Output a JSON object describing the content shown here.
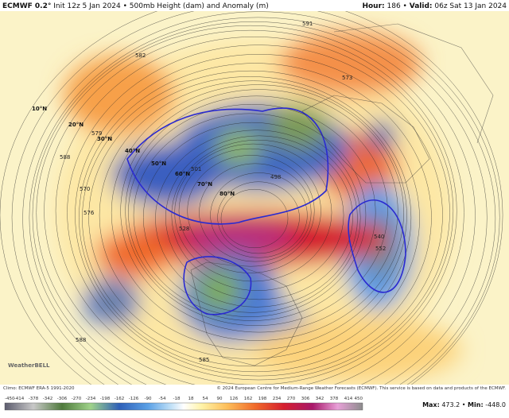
{
  "header": {
    "model": "ECMWF 0.2°",
    "info": "Init 12z 5 Jan 2024 • 500mb Height (dam) and Anomaly (m)",
    "right": [
      "Hour:",
      "186 •",
      "Valid:",
      "06z Sat 13 Jan 2024"
    ]
  },
  "map": {
    "lat_labels": [
      "10°N",
      "20°N",
      "30°N",
      "40°N",
      "50°N",
      "60°N",
      "70°N",
      "80°N"
    ],
    "contour_labels": [
      "591",
      "582",
      "573",
      "579",
      "588",
      "570",
      "576",
      "585",
      "540",
      "552",
      "528",
      "501",
      "498",
      "588"
    ],
    "logo": "WeatherBELL"
  },
  "footer": {
    "climo": "Climo: ECMWF ERA-5 1991-2020",
    "copyright": "© 2024 European Centre for Medium-Range Weather Forecasts (ECMWF). This service is based on data and products of the ECMWF.",
    "colorbar": [
      "-450",
      "-414",
      "-378",
      "-342",
      "-306",
      "-270",
      "-234",
      "-198",
      "-162",
      "-126",
      "-90",
      "-54",
      "-18",
      "18",
      "54",
      "90",
      "126",
      "162",
      "198",
      "234",
      "270",
      "306",
      "342",
      "378",
      "414",
      "450"
    ],
    "stats": [
      "Max:",
      "473.2 •",
      "Min:",
      "-448.0"
    ]
  }
}
